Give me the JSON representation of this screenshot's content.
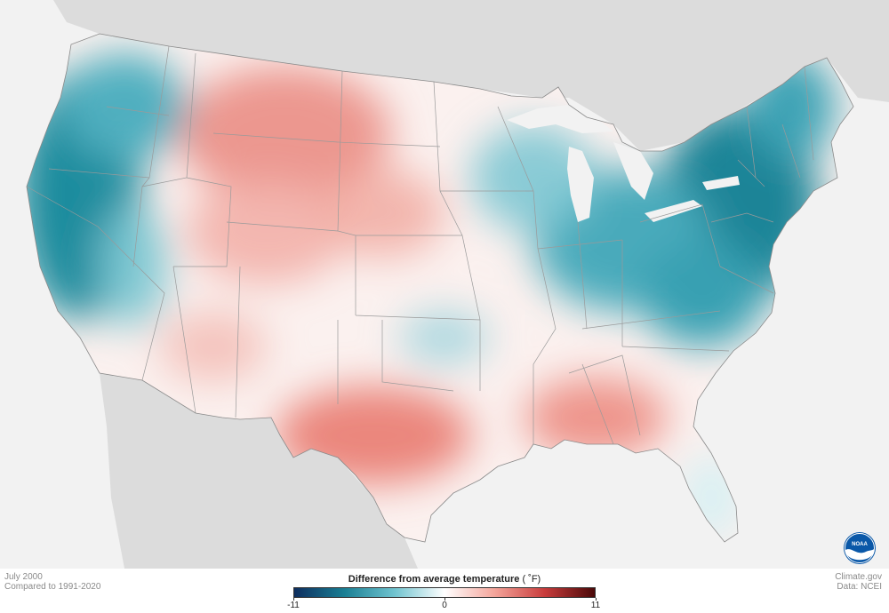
{
  "map": {
    "period": "July 2000",
    "baseline": "Compared to 1991-2020",
    "legend_title": "Difference from average temperature",
    "legend_unit": "( ˚F)",
    "legend_ticks": [
      "-11",
      "0",
      "11"
    ],
    "legend_min": -11,
    "legend_max": 11,
    "color_scale": [
      "#0d2d5e",
      "#1a7f94",
      "#6fc3cf",
      "#ffffff",
      "#f4a49a",
      "#c83c3c",
      "#4a0808"
    ],
    "credit_site": "Climate.gov",
    "credit_data": "Data: NCEI",
    "logo_text": "NOAA",
    "colors": {
      "ocean": "#f2f2f2",
      "land_outside": "#dcdcdc",
      "state_border": "#9a9a9a",
      "cold": "#12879a",
      "warm": "#e46a60"
    },
    "anomaly_regions": [
      {
        "region": "Pacific Northwest / Northern California coast",
        "sign": "cooler than average",
        "level": "strong"
      },
      {
        "region": "Northern Rockies / Montana",
        "sign": "warmer than average",
        "level": "moderate"
      },
      {
        "region": "Upper Midwest / Great Lakes",
        "sign": "cooler than average",
        "level": "moderate"
      },
      {
        "region": "Ohio Valley to Northeast",
        "sign": "cooler than average",
        "level": "strong"
      },
      {
        "region": "Texas",
        "sign": "warmer than average",
        "level": "moderate"
      },
      {
        "region": "Deep South / Georgia",
        "sign": "warmer than average",
        "level": "moderate"
      },
      {
        "region": "Florida peninsula",
        "sign": "cooler than average",
        "level": "slight"
      }
    ]
  }
}
